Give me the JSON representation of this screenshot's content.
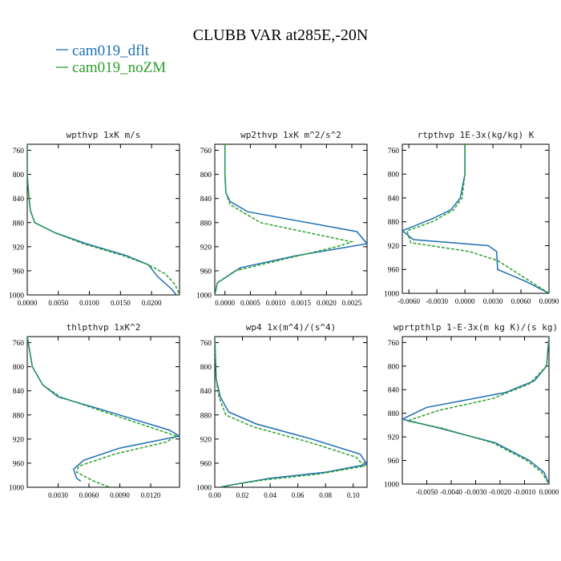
{
  "figure": {
    "title": "CLUBB VAR at285E,-20N",
    "legend_placement": "top-left"
  },
  "colors": {
    "cam019_dflt": "#1f6fb5",
    "cam019_noZM": "#2ca02c"
  },
  "chart_data": [
    {
      "type": "line",
      "title": "wpthvp  1xK m/s",
      "ylim": [
        1000,
        750
      ],
      "xlim": [
        0,
        0.0245
      ],
      "y_ticks": [
        760,
        800,
        840,
        880,
        920,
        960,
        1000
      ],
      "x_ticks": [
        {
          "value": 0,
          "label": "0.0000"
        },
        {
          "value": 0.005,
          "label": "0.0050"
        },
        {
          "value": 0.01,
          "label": "0.0100"
        },
        {
          "value": 0.015,
          "label": "0.0150"
        },
        {
          "value": 0.02,
          "label": "0.0200"
        }
      ],
      "series": [
        {
          "name": "cam019_dflt",
          "style": "solid",
          "x": [
            0,
            0,
            0.0002,
            0.0005,
            0.0012,
            0.0045,
            0.0095,
            0.016,
            0.0195,
            0.021,
            0.0232,
            0.024
          ],
          "y": [
            750,
            800,
            830,
            860,
            880,
            897,
            915,
            935,
            950,
            970,
            990,
            1000
          ]
        },
        {
          "name": "cam019_noZM",
          "style": "dashed",
          "x": [
            0,
            0,
            0.0002,
            0.0005,
            0.0012,
            0.0045,
            0.009,
            0.0155,
            0.0195,
            0.0222,
            0.0238,
            0.0245
          ],
          "y": [
            750,
            800,
            830,
            860,
            880,
            897,
            915,
            935,
            950,
            965,
            983,
            1000
          ]
        }
      ]
    },
    {
      "type": "line",
      "title": "wp2thvp  1xK m^2/s^2",
      "ylim": [
        1000,
        750
      ],
      "xlim": [
        -0.0002,
        0.0028
      ],
      "y_ticks": [
        760,
        800,
        840,
        880,
        920,
        960,
        1000
      ],
      "x_ticks": [
        {
          "value": 0,
          "label": "0.0000"
        },
        {
          "value": 0.0005,
          "label": "0.0005"
        },
        {
          "value": 0.001,
          "label": "0.0010"
        },
        {
          "value": 0.0015,
          "label": "0.0015"
        },
        {
          "value": 0.002,
          "label": "0.0020"
        },
        {
          "value": 0.0025,
          "label": "0.0025"
        }
      ],
      "series": [
        {
          "name": "cam019_dflt",
          "style": "solid",
          "x": [
            0,
            0,
            2e-05,
            0.0001,
            0.00045,
            0.0026,
            0.0028,
            0.0014,
            0.0003,
            -0.00015,
            -0.0002
          ],
          "y": [
            750,
            800,
            830,
            845,
            862,
            895,
            915,
            935,
            955,
            980,
            1000
          ]
        },
        {
          "name": "cam019_noZM",
          "style": "dashed",
          "x": [
            0,
            0,
            2e-05,
            0.0001,
            0.0007,
            0.0025,
            0.0022,
            0.0012,
            0.0002,
            -0.00015,
            -0.0002
          ],
          "y": [
            750,
            800,
            830,
            850,
            880,
            912,
            920,
            940,
            960,
            980,
            1000
          ]
        }
      ]
    },
    {
      "type": "line",
      "title": "rtpthvp  1E-3x(kg/kg) K",
      "ylim": [
        1000,
        750
      ],
      "xlim": [
        -0.0067,
        0.009
      ],
      "y_ticks": [
        760,
        800,
        840,
        880,
        920,
        960,
        1000
      ],
      "x_ticks": [
        {
          "value": -0.006,
          "label": "-0.0060"
        },
        {
          "value": -0.003,
          "label": "-0.0030"
        },
        {
          "value": 0,
          "label": "0.0000"
        },
        {
          "value": 0.003,
          "label": "0.0030"
        },
        {
          "value": 0.006,
          "label": "0.0060"
        },
        {
          "value": 0.009,
          "label": "0.0090"
        }
      ],
      "series": [
        {
          "name": "cam019_dflt",
          "style": "solid",
          "x": [
            0,
            0,
            -0.0005,
            -0.0015,
            -0.0035,
            -0.0067,
            -0.0055,
            0.0025,
            0.0034,
            0.0035,
            0.0065,
            0.009
          ],
          "y": [
            750,
            800,
            840,
            860,
            875,
            895,
            910,
            920,
            930,
            960,
            980,
            1000
          ]
        },
        {
          "name": "cam019_noZM",
          "style": "dashed",
          "x": [
            0,
            0,
            -0.0003,
            -0.0012,
            -0.0035,
            -0.0062,
            -0.0058,
            0.0005,
            0.0035,
            0.0055,
            0.0075,
            0.009
          ],
          "y": [
            750,
            800,
            840,
            860,
            880,
            895,
            915,
            930,
            945,
            965,
            985,
            1000
          ]
        }
      ]
    },
    {
      "type": "line",
      "title": "thlpthvp  1xK^2",
      "ylim": [
        1000,
        750
      ],
      "xlim": [
        0,
        0.0148
      ],
      "y_ticks": [
        760,
        800,
        840,
        880,
        920,
        960,
        1000
      ],
      "x_ticks": [
        {
          "value": 0.003,
          "label": "0.0030"
        },
        {
          "value": 0.006,
          "label": "0.0060"
        },
        {
          "value": 0.009,
          "label": "0.0090"
        },
        {
          "value": 0.012,
          "label": "0.0120"
        }
      ],
      "series": [
        {
          "name": "cam019_dflt",
          "style": "solid",
          "x": [
            0,
            0.0005,
            0.0015,
            0.003,
            0.007,
            0.0138,
            0.0148,
            0.009,
            0.0055,
            0.0045,
            0.0048,
            0.0052
          ],
          "y": [
            750,
            800,
            830,
            850,
            870,
            905,
            915,
            935,
            955,
            970,
            985,
            990
          ]
        },
        {
          "name": "cam019_noZM",
          "style": "dashed",
          "x": [
            0,
            0.0005,
            0.0015,
            0.0032,
            0.0075,
            0.0145,
            0.0135,
            0.0085,
            0.005,
            0.0048,
            0.0065,
            0.008
          ],
          "y": [
            750,
            800,
            830,
            850,
            875,
            915,
            925,
            945,
            965,
            975,
            990,
            1000
          ]
        }
      ]
    },
    {
      "type": "line",
      "title": "wp4  1x(m^4)/(s^4)",
      "ylim": [
        1000,
        750
      ],
      "xlim": [
        0,
        0.11
      ],
      "y_ticks": [
        760,
        800,
        840,
        880,
        920,
        960,
        1000
      ],
      "x_ticks": [
        {
          "value": 0,
          "label": "0.00"
        },
        {
          "value": 0.02,
          "label": "0.02"
        },
        {
          "value": 0.04,
          "label": "0.04"
        },
        {
          "value": 0.06,
          "label": "0.06"
        },
        {
          "value": 0.08,
          "label": "0.08"
        },
        {
          "value": 0.1,
          "label": "0.10"
        }
      ],
      "series": [
        {
          "name": "cam019_dflt",
          "style": "solid",
          "x": [
            0,
            0.001,
            0.004,
            0.01,
            0.03,
            0.07,
            0.105,
            0.11,
            0.08,
            0.04,
            0.015,
            0.004
          ],
          "y": [
            750,
            820,
            850,
            875,
            895,
            920,
            945,
            962,
            975,
            985,
            995,
            1000
          ]
        },
        {
          "name": "cam019_noZM",
          "style": "dashed",
          "x": [
            0,
            0.001,
            0.003,
            0.008,
            0.028,
            0.068,
            0.102,
            0.108,
            0.075,
            0.035,
            0.012,
            0.003
          ],
          "y": [
            750,
            820,
            850,
            880,
            900,
            925,
            950,
            965,
            978,
            988,
            996,
            1000
          ]
        }
      ]
    },
    {
      "type": "line",
      "title": "wprtpthlp  1-E-3x(m kg K)/(s kg)",
      "ylim": [
        1000,
        750
      ],
      "xlim": [
        -0.006,
        0
      ],
      "y_ticks": [
        760,
        800,
        840,
        880,
        920,
        960,
        1000
      ],
      "x_ticks": [
        {
          "value": -0.005,
          "label": "-0.0050"
        },
        {
          "value": -0.004,
          "label": "-0.0040"
        },
        {
          "value": -0.003,
          "label": "-0.0030"
        },
        {
          "value": -0.002,
          "label": "-0.0020"
        },
        {
          "value": -0.001,
          "label": "-0.0010"
        },
        {
          "value": 0,
          "label": "0.0000"
        }
      ],
      "series": [
        {
          "name": "cam019_dflt",
          "style": "solid",
          "x": [
            0,
            -0.0001,
            -0.0006,
            -0.0018,
            -0.005,
            -0.006,
            -0.0045,
            -0.0022,
            -0.0008,
            -0.0002,
            0
          ],
          "y": [
            750,
            800,
            825,
            845,
            870,
            890,
            905,
            930,
            960,
            980,
            1000
          ]
        },
        {
          "name": "cam019_noZM",
          "style": "dashed",
          "x": [
            0,
            -0.0001,
            -0.0008,
            -0.0023,
            -0.0045,
            -0.0058,
            -0.0044,
            -0.0023,
            -0.0009,
            -0.0003,
            0
          ],
          "y": [
            750,
            800,
            830,
            855,
            875,
            893,
            905,
            930,
            960,
            980,
            1000
          ]
        }
      ]
    }
  ]
}
